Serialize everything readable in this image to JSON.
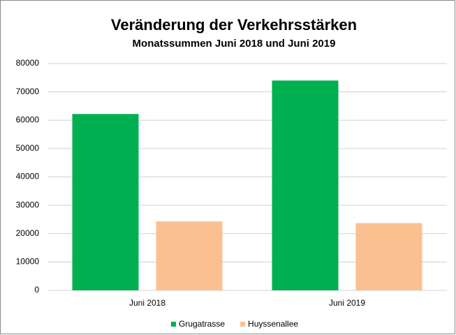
{
  "chart_data": {
    "type": "bar",
    "title": "Veränderung der Verkehrsstärken",
    "subtitle": "Monatssummen Juni 2018 und Juni 2019",
    "categories": [
      "Juni 2018",
      "Juni 2019"
    ],
    "series": [
      {
        "name": "Grugatrasse",
        "color": "#00b050",
        "values": [
          62200,
          74000
        ]
      },
      {
        "name": "Huyssenallee",
        "color": "#fac090",
        "values": [
          24300,
          23700
        ]
      }
    ],
    "ylim": [
      0,
      80000
    ],
    "yticks": [
      0,
      10000,
      20000,
      30000,
      40000,
      50000,
      60000,
      70000,
      80000
    ],
    "grid": true,
    "legend": "bottom"
  }
}
